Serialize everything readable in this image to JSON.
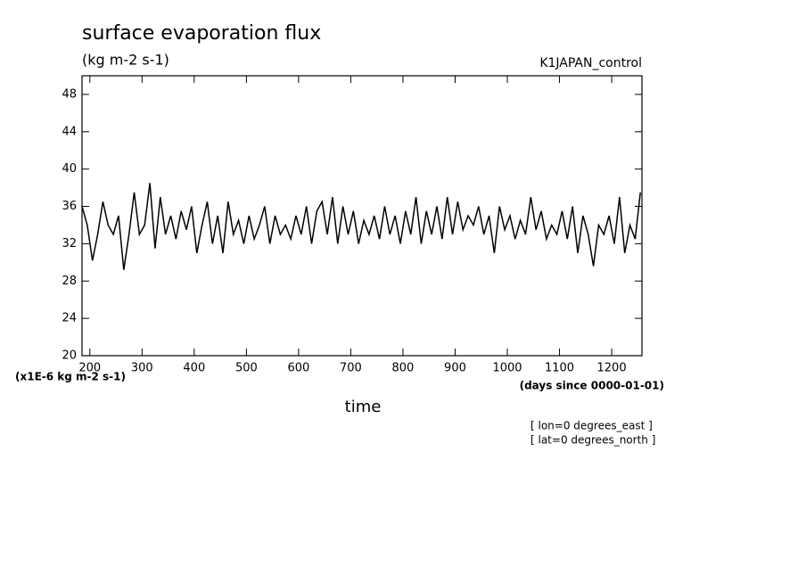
{
  "chart_data": {
    "type": "line",
    "title": "surface evaporation flux",
    "subtitle": "(kg m-2 s-1)",
    "experiment": "K1JAPAN_control",
    "y_units": "(x1E-6 kg m-2 s-1)",
    "x_units": "(days since 0000-01-01)",
    "x_label": "time",
    "notes": [
      "[ lon=0 degrees_east ]",
      "[ lat=0 degrees_north ]"
    ],
    "x": [
      185,
      195,
      205,
      215,
      225,
      235,
      245,
      255,
      265,
      275,
      285,
      295,
      305,
      315,
      325,
      335,
      345,
      355,
      365,
      375,
      385,
      395,
      405,
      415,
      425,
      435,
      445,
      455,
      465,
      475,
      485,
      495,
      505,
      515,
      525,
      535,
      545,
      555,
      565,
      575,
      585,
      595,
      605,
      615,
      625,
      635,
      645,
      655,
      665,
      675,
      685,
      695,
      705,
      715,
      725,
      735,
      745,
      755,
      765,
      775,
      785,
      795,
      805,
      815,
      825,
      835,
      845,
      855,
      865,
      875,
      885,
      895,
      905,
      915,
      925,
      935,
      945,
      955,
      965,
      975,
      985,
      995,
      1005,
      1015,
      1025,
      1035,
      1045,
      1055,
      1065,
      1075,
      1085,
      1095,
      1105,
      1115,
      1125,
      1135,
      1145,
      1155,
      1165,
      1175,
      1185,
      1195,
      1205,
      1215,
      1225,
      1235,
      1245,
      1255
    ],
    "series": [
      {
        "color": "#000000",
        "values": [
          36,
          34,
          30.2,
          33,
          36.5,
          34,
          33,
          35,
          29.2,
          33,
          37.5,
          33,
          34,
          38.5,
          31.5,
          37,
          33,
          35,
          32.5,
          35.5,
          33.5,
          36,
          31,
          34,
          36.5,
          32,
          35,
          31,
          36.5,
          33,
          34.5,
          32,
          35,
          32.5,
          34,
          36,
          32,
          35,
          33,
          34,
          32.5,
          35,
          33,
          36,
          32,
          35.5,
          36.5,
          33,
          37,
          32,
          36,
          33,
          35.5,
          32,
          34.5,
          33,
          35,
          32.5,
          36,
          33,
          35,
          32,
          35.5,
          33,
          37,
          32,
          35.5,
          33,
          36,
          32.5,
          37,
          33,
          36.5,
          33.5,
          35,
          34,
          36,
          33,
          35,
          31,
          36,
          33.5,
          35,
          32.5,
          34.5,
          33,
          37,
          33.5,
          35.5,
          32.5,
          34,
          33,
          35.5,
          32.5,
          36,
          31,
          35,
          33,
          29.6,
          34,
          33,
          35,
          32,
          37,
          31,
          34,
          32.5,
          37.5
        ]
      }
    ],
    "xlim": [
      185,
      1258
    ],
    "ylim": [
      20,
      50
    ],
    "xticks": [
      200,
      300,
      400,
      500,
      600,
      700,
      800,
      900,
      1000,
      1100,
      1200
    ],
    "yticks": [
      20,
      24,
      28,
      32,
      36,
      40,
      44,
      48
    ]
  }
}
